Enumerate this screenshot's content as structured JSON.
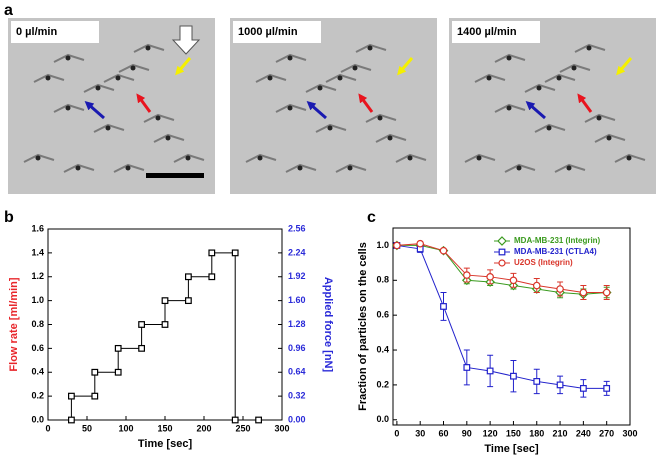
{
  "figure": {
    "panel_labels": [
      "a",
      "b",
      "c"
    ]
  },
  "images": [
    {
      "label": "0 µl/min"
    },
    {
      "label": "1000 µl/min"
    },
    {
      "label": "1400 µl/min"
    }
  ],
  "chart_data": [
    {
      "type": "line",
      "x": [
        30,
        30,
        60,
        60,
        90,
        90,
        120,
        120,
        150,
        150,
        180,
        180,
        210,
        210,
        240,
        240,
        270
      ],
      "values": [
        0,
        0.2,
        0.2,
        0.4,
        0.4,
        0.6,
        0.6,
        0.8,
        0.8,
        1.0,
        1.0,
        1.2,
        1.2,
        1.4,
        1.4,
        0,
        0
      ],
      "color": "#000000",
      "marker": "square",
      "xlim": [
        0,
        300
      ],
      "xticks": [
        0,
        50,
        100,
        150,
        200,
        250,
        300
      ],
      "ylim": [
        0,
        1.6
      ],
      "yticks": [
        {
          "value": 0,
          "label": "0.0"
        },
        0.2,
        0.4,
        0.6,
        0.8,
        {
          "value": 1,
          "label": "1.0"
        },
        1.2,
        1.4,
        1.6
      ],
      "y2lim": [
        0,
        2.56
      ],
      "y2ticks": [
        {
          "value": 0,
          "label": "0.00"
        },
        0.32,
        0.64,
        0.96,
        1.28,
        {
          "value": 1.6,
          "label": "1.60"
        },
        1.92,
        2.24,
        2.56
      ],
      "xlabel": "Time [sec]",
      "ylabel": "Flow rate [ml/min]",
      "ylabel_color": "#e8262b",
      "y2label": "Applied force [nN]",
      "y2_color": "#2a2ad8"
    },
    {
      "type": "line",
      "x": [
        0,
        30,
        60,
        90,
        120,
        150,
        180,
        210,
        240,
        270
      ],
      "series": [
        {
          "name": "MDA-MB-231 (Integrin)",
          "color": "#3a9a1e",
          "marker": "diamond",
          "values": [
            1.0,
            1.0,
            0.97,
            0.8,
            0.79,
            0.77,
            0.75,
            0.73,
            0.72,
            0.73
          ],
          "errors": [
            0.01,
            0.01,
            0.01,
            0.02,
            0.02,
            0.02,
            0.02,
            0.03,
            0.03,
            0.03
          ]
        },
        {
          "name": "MDA-MB-231 (CTLA4)",
          "color": "#2222cc",
          "marker": "square",
          "values": [
            1.0,
            0.98,
            0.65,
            0.3,
            0.28,
            0.25,
            0.22,
            0.2,
            0.18,
            0.18
          ],
          "errors": [
            0.01,
            0.02,
            0.08,
            0.1,
            0.09,
            0.09,
            0.07,
            0.05,
            0.05,
            0.04
          ]
        },
        {
          "name": "U2OS (Integrin)",
          "color": "#d9352a",
          "marker": "circle",
          "values": [
            1.0,
            1.01,
            0.97,
            0.83,
            0.82,
            0.8,
            0.77,
            0.75,
            0.73,
            0.73
          ],
          "errors": [
            0.01,
            0.01,
            0.01,
            0.04,
            0.04,
            0.04,
            0.04,
            0.04,
            0.04,
            0.04
          ]
        }
      ],
      "xlim": [
        -5,
        300
      ],
      "xticks": [
        0,
        30,
        60,
        90,
        120,
        150,
        180,
        210,
        240,
        270,
        300
      ],
      "ylim": [
        -0.03,
        1.1
      ],
      "yticks": [
        {
          "value": 0,
          "label": "0.0"
        },
        0.2,
        0.4,
        0.6,
        0.8,
        {
          "value": 1,
          "label": "1.0"
        }
      ],
      "xlabel": "Time [sec]",
      "ylabel": "Fraction of particles on the cells",
      "legend": "upper right"
    }
  ]
}
